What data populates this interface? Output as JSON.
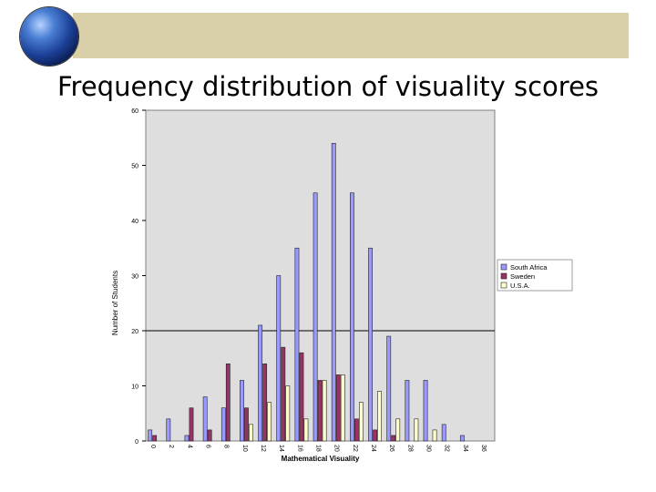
{
  "slide": {
    "title": "Frequency distribution of visuality scores"
  },
  "chart_data": {
    "type": "bar",
    "categories": [
      "0",
      "2",
      "4",
      "6",
      "8",
      "10",
      "12",
      "14",
      "16",
      "18",
      "20",
      "22",
      "24",
      "26",
      "28",
      "30",
      "32",
      "34",
      "36"
    ],
    "series": [
      {
        "name": "South Africa",
        "values": [
          2,
          4,
          1,
          8,
          6,
          11,
          21,
          30,
          35,
          45,
          54,
          45,
          35,
          19,
          11,
          11,
          3,
          1,
          0
        ]
      },
      {
        "name": "Sweden",
        "values": [
          1,
          0,
          6,
          2,
          14,
          6,
          14,
          17,
          16,
          11,
          12,
          4,
          2,
          1,
          0,
          0,
          0,
          0,
          0
        ]
      },
      {
        "name": "U.S.A.",
        "values": [
          0,
          0,
          0,
          0,
          0,
          3,
          7,
          10,
          4,
          11,
          12,
          7,
          9,
          4,
          4,
          2,
          0,
          0,
          0
        ]
      }
    ],
    "xlabel": "Mathematical Visuality",
    "ylabel": "Number of Students",
    "ylim": [
      0,
      60
    ],
    "yticks": [
      "0",
      "10",
      "20",
      "30",
      "40",
      "50",
      "60"
    ],
    "legend_position": "right",
    "grid": true,
    "colors": {
      "South Africa": "#9999ff",
      "Sweden": "#993366",
      "U.S.A.": "#ffffcc",
      "plot_bg": "#dedede"
    }
  }
}
